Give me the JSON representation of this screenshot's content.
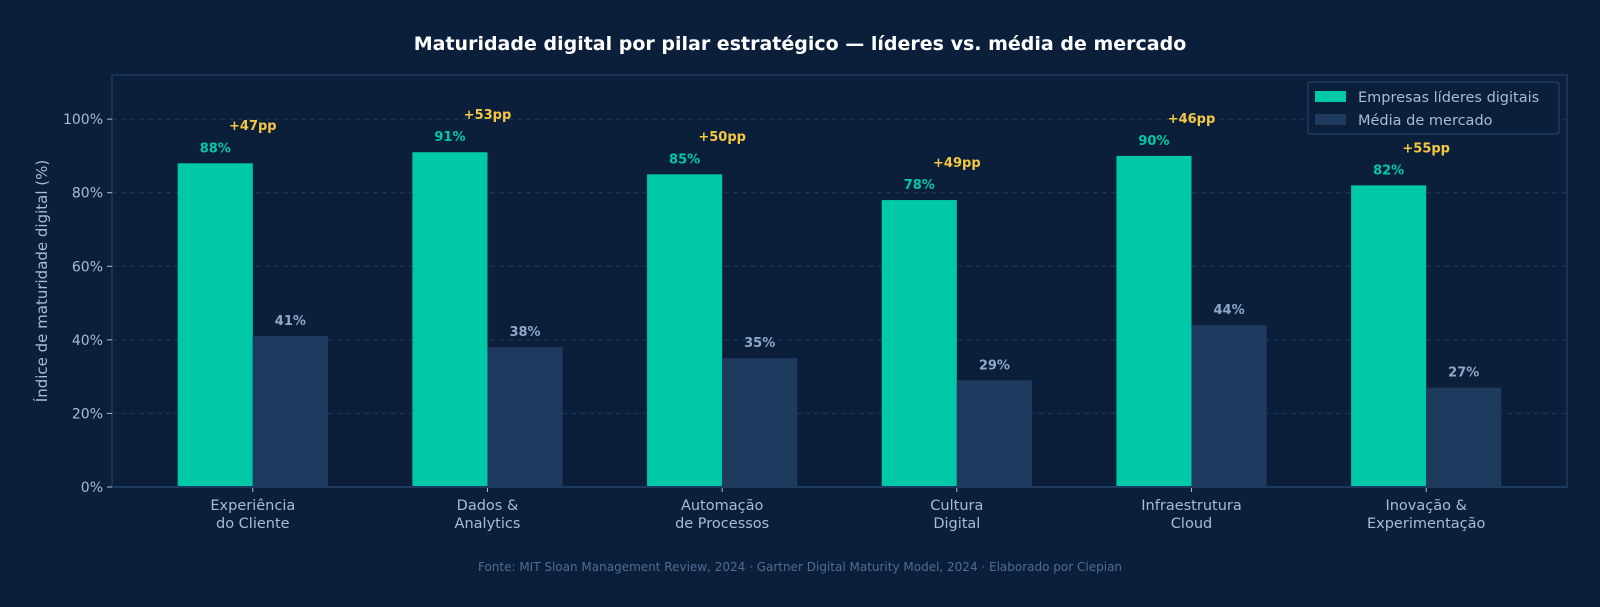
{
  "chart_data": {
    "type": "bar",
    "title": "Maturidade digital por pilar estratégico — líderes vs. média de mercado",
    "xlabel": "",
    "ylabel": "Índice de maturidade digital (%)",
    "ylim": [
      0,
      112
    ],
    "yticks": [
      0,
      20,
      40,
      60,
      80,
      100
    ],
    "ytick_labels": [
      "0%",
      "20%",
      "40%",
      "60%",
      "80%",
      "100%"
    ],
    "grid": "y-dashed",
    "legend_position": "top-right",
    "categories": [
      [
        "Experiência",
        "do Cliente"
      ],
      [
        "Dados &",
        "Analytics"
      ],
      [
        "Automação",
        "de Processos"
      ],
      [
        "Cultura",
        "Digital"
      ],
      [
        "Infraestrutura",
        "Cloud"
      ],
      [
        "Inovação &",
        "Experimentação"
      ]
    ],
    "series": [
      {
        "name": "Empresas líderes digitais",
        "color": "#00c9a7",
        "label_color": "#00c9a7",
        "values": [
          88,
          91,
          85,
          78,
          90,
          82
        ]
      },
      {
        "name": "Média de mercado",
        "color": "#1e3a5f",
        "label_color": "#8fa8c8",
        "values": [
          41,
          38,
          35,
          29,
          44,
          27
        ]
      }
    ],
    "gap_labels": [
      "+47pp",
      "+53pp",
      "+50pp",
      "+49pp",
      "+46pp",
      "+55pp"
    ],
    "gap_color": "#f5c842",
    "source": "Fonte: MIT Sloan Management Review, 2024 · Gartner Digital Maturity Model, 2024 · Elaborado por Clepian"
  }
}
